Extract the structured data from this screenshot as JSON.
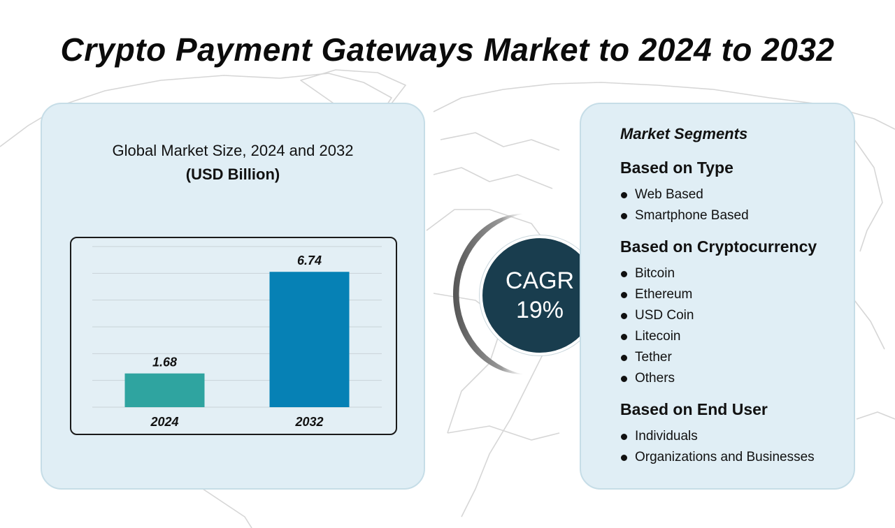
{
  "title": "Crypto Payment Gateways Market to 2024 to 2032",
  "chart": {
    "heading": "Global Market Size, 2024 and 2032",
    "unit": "(USD Billion)"
  },
  "chart_data": {
    "type": "bar",
    "title": "Global Market Size, 2024 and 2032",
    "subtitle": "(USD Billion)",
    "categories": [
      "2024",
      "2032"
    ],
    "values": [
      1.68,
      6.74
    ],
    "data_labels": [
      "1.68",
      "6.74"
    ],
    "colors": [
      "#2fa4a0",
      "#0681b5"
    ],
    "ylim": [
      0,
      8
    ],
    "grid": true,
    "xlabel": "",
    "ylabel": ""
  },
  "cagr": {
    "label": "CAGR",
    "value": "19%"
  },
  "segments": {
    "title": "Market Segments",
    "groups": [
      {
        "heading": "Based on Type",
        "items": [
          "Web Based",
          "Smartphone Based"
        ]
      },
      {
        "heading": "Based on Cryptocurrency",
        "items": [
          "Bitcoin",
          "Ethereum",
          "USD Coin",
          "Litecoin",
          "Tether",
          "Others"
        ]
      },
      {
        "heading": "Based on End User",
        "items": [
          "Individuals",
          "Organizations and Businesses"
        ]
      }
    ]
  }
}
